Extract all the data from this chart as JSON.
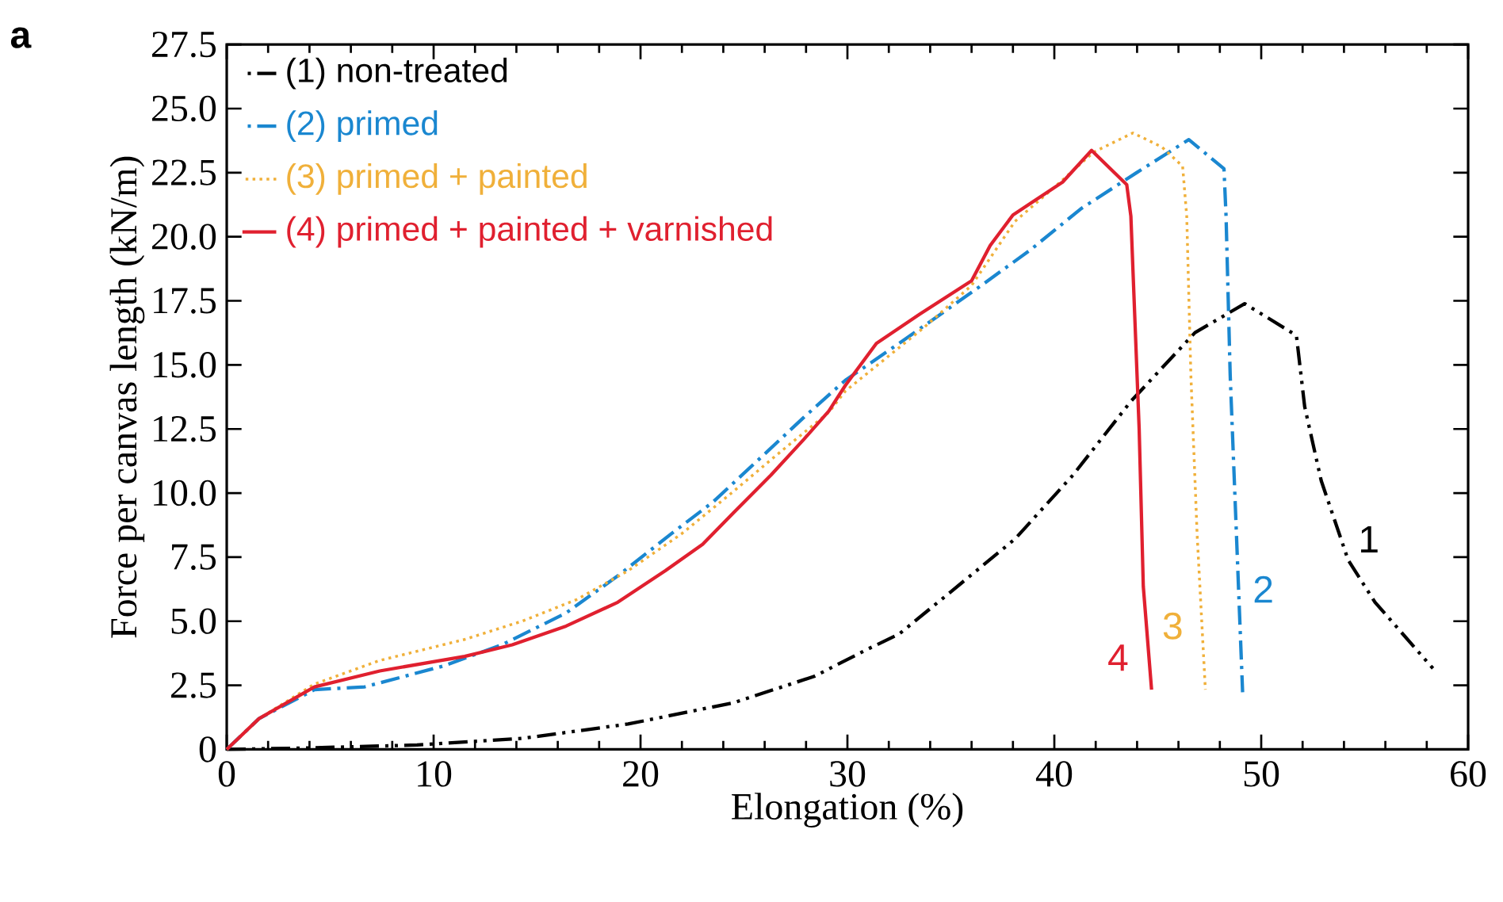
{
  "chart_data": {
    "type": "line",
    "xlabel": "Elongation (%)",
    "ylabel": "Force per canvas length (kN/m)",
    "xlim": [
      0,
      60
    ],
    "xticks": [
      0,
      10,
      20,
      30,
      40,
      50,
      60
    ],
    "ylim": [
      0,
      27.5
    ],
    "yticks": [
      0,
      {
        "value": 2.5,
        "label": "2.5"
      },
      {
        "value": 5,
        "label": "5.0"
      },
      {
        "value": 7.5,
        "label": "7.5"
      },
      {
        "value": 10,
        "label": "10.0"
      },
      {
        "value": 12.5,
        "label": "12.5"
      },
      {
        "value": 15,
        "label": "15.0"
      },
      {
        "value": 17.5,
        "label": "17.5"
      },
      {
        "value": 20,
        "label": "20.0"
      },
      {
        "value": 22.5,
        "label": "22.5"
      },
      {
        "value": 25,
        "label": "25.0"
      },
      {
        "value": 27.5,
        "label": "27.5"
      }
    ],
    "grid": false,
    "legend": "top left",
    "marker": "none",
    "series": [
      {
        "name": "(1) non-treated",
        "color": "#000000",
        "line_style": "dashdotdotted",
        "x": [
          0,
          4.1,
          9.2,
          14.3,
          19.4,
          24.5,
          28.4,
          30.9,
          32.5,
          35.0,
          38.1,
          40.9,
          43.7,
          46.8,
          49.2,
          51.7,
          52.1,
          52.9,
          54.2,
          55.5,
          58.3
        ],
        "values": [
          0,
          0.06,
          0.17,
          0.43,
          0.99,
          1.82,
          2.85,
          3.88,
          4.5,
          6.15,
          8.21,
          10.7,
          13.58,
          16.26,
          17.39,
          16.15,
          13.37,
          10.48,
          7.39,
          5.74,
          3.16
        ]
      },
      {
        "name": "(2) primed",
        "color": "#1a87d0",
        "line_style": "dashdotted",
        "x": [
          0,
          1.56,
          4.24,
          6.67,
          10.5,
          13.3,
          16.4,
          18.9,
          21.5,
          23.5,
          26.1,
          27.9,
          29.9,
          32.5,
          36.3,
          38.8,
          41.3,
          43.96,
          46.5,
          48.2,
          48.3,
          48.5,
          48.8,
          49.1
        ],
        "values": [
          0,
          1.2,
          2.33,
          2.44,
          3.26,
          4.08,
          5.32,
          6.77,
          8.42,
          9.65,
          11.6,
          12.96,
          14.4,
          15.84,
          18.0,
          19.46,
          21.1,
          22.49,
          23.79,
          22.65,
          20.8,
          14.6,
          8.42,
          2.23
        ]
      },
      {
        "name": "(3) primed + painted",
        "color": "#f0b03a",
        "line_style": "dotted",
        "x": [
          0,
          1.56,
          4.24,
          7.4,
          11.5,
          14.3,
          16.9,
          19.4,
          22.0,
          24.5,
          26.6,
          29.1,
          29.9,
          33.7,
          36.0,
          38.1,
          40.1,
          41.9,
          43.8,
          45.2,
          46.2,
          46.4,
          46.6,
          46.9,
          47.3
        ],
        "values": [
          0,
          1.2,
          2.55,
          3.47,
          4.29,
          5.01,
          5.84,
          6.97,
          8.42,
          10.07,
          11.5,
          13.15,
          13.98,
          16.46,
          18.1,
          20.6,
          22.0,
          23.3,
          24.05,
          23.5,
          22.75,
          20.8,
          14.6,
          8.42,
          2.33
        ]
      },
      {
        "name": "(4) primed + painted + varnished",
        "color": "#e0202f",
        "line_style": "solid",
        "x": [
          0,
          1.56,
          4.24,
          7.4,
          11.5,
          13.8,
          16.4,
          18.9,
          21.2,
          23.0,
          24.5,
          26.3,
          27.9,
          29.1,
          29.9,
          31.4,
          33.5,
          36.0,
          36.9,
          38.0,
          40.4,
          41.8,
          43.5,
          43.7,
          43.8,
          44.1,
          44.3,
          44.7
        ],
        "values": [
          0,
          1.2,
          2.44,
          3.06,
          3.63,
          4.08,
          4.81,
          5.74,
          6.97,
          8.0,
          9.24,
          10.7,
          12.1,
          13.2,
          14.2,
          15.84,
          16.98,
          18.28,
          19.66,
          20.85,
          22.13,
          23.37,
          22.03,
          20.8,
          18.7,
          12.5,
          6.36,
          2.33
        ]
      }
    ],
    "annotations": [
      "a",
      "1",
      "2",
      "3",
      "4"
    ]
  }
}
